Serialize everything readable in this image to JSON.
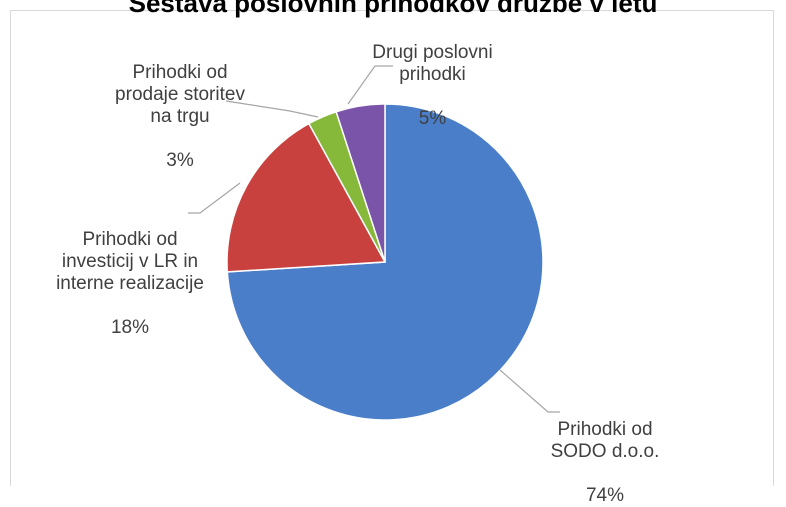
{
  "chart_data": {
    "type": "pie",
    "title": "Sestava poslovnih prihodkov družbe v letu",
    "slices": [
      {
        "label": "Prihodki od SODO d.o.o.",
        "value": 74,
        "value_label": "74%",
        "color": "#4a7ec8"
      },
      {
        "label": "Prihodki od investicij v LR in interne realizacije",
        "value": 18,
        "value_label": "18%",
        "color": "#c9413f"
      },
      {
        "label": "Prihodki od prodaje storitev na trgu",
        "value": 3,
        "value_label": "3%",
        "color": "#86b83a"
      },
      {
        "label": "Drugi poslovni prihodki",
        "value": 5,
        "value_label": "5%",
        "color": "#7954a8"
      }
    ],
    "legend": "none"
  }
}
